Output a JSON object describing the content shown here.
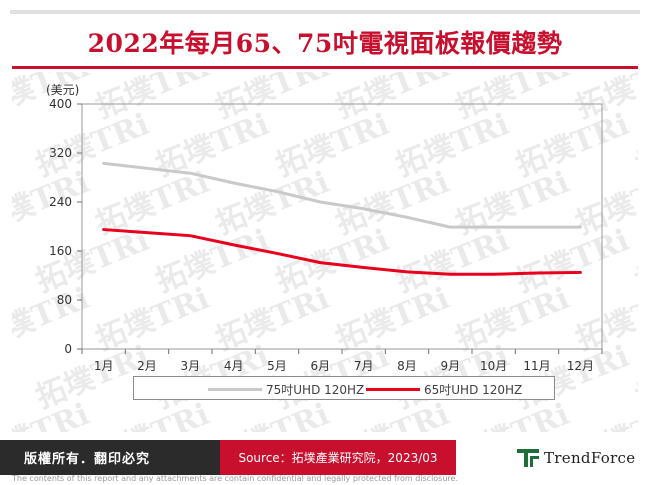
{
  "title": "2022年每月65、75吋電視面板報價趨勢",
  "watermark": {
    "text": "拓墣TRi"
  },
  "chart_data": {
    "type": "line",
    "ylabel": "(美元)",
    "ylim": [
      0,
      400
    ],
    "yticks": [
      0,
      80,
      160,
      240,
      320,
      400
    ],
    "categories": [
      "1月",
      "2月",
      "3月",
      "4月",
      "5月",
      "6月",
      "7月",
      "8月",
      "9月",
      "10月",
      "11月",
      "12月"
    ],
    "series": [
      {
        "name": "75吋UHD 120HZ",
        "color": "#c9c9c9",
        "values": [
          303,
          295,
          287,
          271,
          257,
          240,
          229,
          215,
          199,
          199,
          199,
          199
        ]
      },
      {
        "name": "65吋UHD 120HZ",
        "color": "#e8001c",
        "values": [
          195,
          190,
          185,
          170,
          156,
          141,
          133,
          126,
          122,
          122,
          124,
          125
        ]
      }
    ],
    "grid": false,
    "legend_position": "bottom"
  },
  "footer": {
    "rights": "版權所有．翻印必究",
    "source": "Source：拓墣產業研究院，2023/03",
    "brand": "TrendForce",
    "disclaimer": "The contents of this report and any attachments are contain confidential and legally protected from disclosure."
  }
}
